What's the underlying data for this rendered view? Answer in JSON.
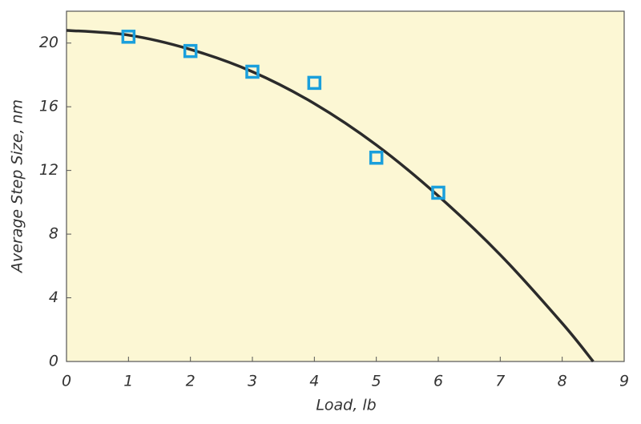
{
  "chart_data": {
    "type": "scatter",
    "x_label": "Load, lb",
    "y_label": "Average Step Size, nm",
    "xlim": [
      0,
      9
    ],
    "xticks": [
      0,
      1,
      2,
      3,
      4,
      5,
      6,
      7,
      8,
      9
    ],
    "ylim": [
      0,
      22
    ],
    "yticks": [
      0,
      4,
      8,
      12,
      16,
      20
    ],
    "background": "#fcf7d4",
    "series": [
      {
        "style": "markers",
        "color": "#1a9fdc",
        "x": [
          1,
          2,
          3,
          4,
          5,
          6
        ],
        "values": [
          20.4,
          19.5,
          18.2,
          17.5,
          12.8,
          10.6
        ]
      },
      {
        "style": "line",
        "color": "#2b2b2b",
        "x": [
          0,
          1,
          2,
          3,
          4,
          5,
          6,
          7,
          8,
          8.5
        ],
        "values": [
          20.8,
          20.5,
          19.6,
          18.2,
          16.2,
          13.6,
          10.4,
          6.7,
          2.4,
          0
        ]
      }
    ]
  }
}
